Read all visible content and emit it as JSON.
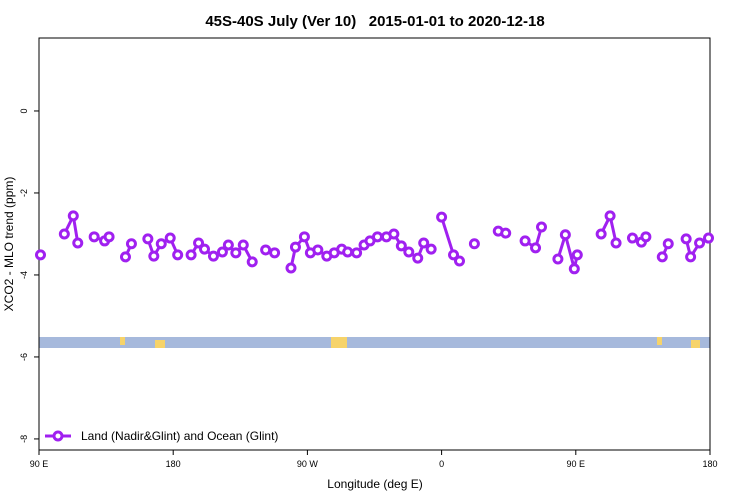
{
  "chart_data": {
    "type": "line",
    "title": "45S-40S July (Ver 10)   2015-01-01 to 2020-12-18",
    "x_label": "Longitude (deg E)",
    "y_label": "XCO2 - MLO trend (ppm)",
    "xlim": [
      90,
      540
    ],
    "ylim": [
      -8.27,
      1.78
    ],
    "xticks": [
      {
        "value": 90,
        "label": "90 E"
      },
      180,
      {
        "value": 270,
        "label": "90 W"
      },
      {
        "value": 360,
        "label": "0"
      },
      {
        "value": 450,
        "label": "90 E"
      },
      {
        "value": 540,
        "label": "180"
      }
    ],
    "yticks": [
      0,
      -2,
      -4,
      -6,
      -8
    ],
    "legend": "bottom left",
    "x": [
      91,
      null,
      107,
      113,
      116,
      null,
      127,
      134,
      137,
      null,
      148,
      152,
      null,
      163,
      167,
      172,
      178,
      183,
      null,
      192,
      197,
      201,
      207,
      213,
      217,
      222,
      227,
      233,
      null,
      242,
      248,
      null,
      259,
      262,
      268,
      272,
      277,
      283,
      288,
      293,
      297,
      303,
      308,
      312,
      317,
      323,
      328,
      333,
      338,
      344,
      348,
      353,
      null,
      360,
      368,
      372,
      null,
      382,
      null,
      398,
      403,
      null,
      416,
      423,
      427,
      null,
      438,
      443,
      449,
      451,
      null,
      467,
      473,
      477,
      null,
      488,
      494,
      497,
      null,
      508,
      512,
      null,
      524,
      527,
      533,
      539
    ],
    "series": [
      {
        "name": "Land (Nadir&Glint) and Ocean (Glint)",
        "color": "#a020f0",
        "values": [
          -3.51,
          null,
          -3.0,
          -2.56,
          -3.22,
          null,
          -3.07,
          -3.17,
          -3.07,
          null,
          -3.56,
          -3.24,
          null,
          -3.12,
          -3.54,
          -3.24,
          -3.1,
          -3.51,
          null,
          -3.51,
          -3.22,
          -3.37,
          -3.54,
          -3.44,
          -3.27,
          -3.46,
          -3.27,
          -3.68,
          null,
          -3.39,
          -3.46,
          null,
          -3.83,
          -3.32,
          -3.07,
          -3.46,
          -3.39,
          -3.54,
          -3.46,
          -3.37,
          -3.44,
          -3.46,
          -3.27,
          -3.17,
          -3.07,
          -3.07,
          -3.0,
          -3.29,
          -3.44,
          -3.59,
          -3.22,
          -3.37,
          null,
          -2.59,
          -3.51,
          -3.66,
          null,
          -3.24,
          null,
          -2.93,
          -2.98,
          null,
          -3.17,
          -3.34,
          -2.83,
          null,
          -3.61,
          -3.02,
          -3.85,
          -3.51,
          null,
          -3.0,
          -2.56,
          -3.22,
          null,
          -3.1,
          -3.2,
          -3.07,
          null,
          -3.56,
          -3.24,
          null,
          -3.12,
          -3.56,
          -3.22,
          -3.1
        ]
      }
    ]
  }
}
